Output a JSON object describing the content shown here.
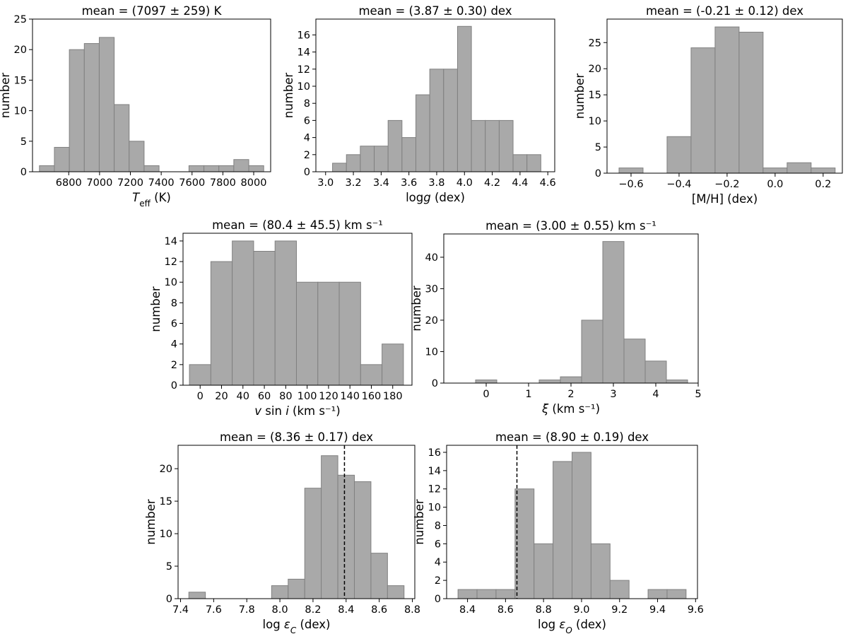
{
  "chart_data": [
    {
      "type": "histogram",
      "title": "mean = (7097 ± 259) K",
      "ylabel": "number",
      "xlabel": [
        {
          "text": "T",
          "italic": true
        },
        {
          "text": "eff",
          "sub": true
        },
        {
          "text": " (K)"
        }
      ],
      "bins": [
        6610,
        6707,
        6804,
        6901,
        6998,
        7095,
        7192,
        7289,
        7386,
        7483,
        7580,
        7677,
        7774,
        7871,
        7968,
        8065
      ],
      "values": [
        1,
        4,
        20,
        21,
        22,
        11,
        5,
        1,
        0,
        0,
        1,
        1,
        1,
        2,
        1
      ],
      "color": "#a9a9a9",
      "edgecolor": "#808080",
      "xlim": [
        6565,
        8110
      ],
      "xticks": [
        6800,
        7000,
        7200,
        7400,
        7600,
        7800,
        8000
      ],
      "ylim": [
        0,
        25
      ],
      "yticks": [
        0,
        5,
        10,
        15,
        20,
        25
      ]
    },
    {
      "type": "histogram",
      "title": "mean = (3.87 ± 0.30) dex",
      "ylabel": "number",
      "xlabel": [
        {
          "text": "log"
        },
        {
          "text": "g",
          "italic": true
        },
        {
          "text": " (dex)"
        }
      ],
      "bins": [
        3.05,
        3.15,
        3.25,
        3.35,
        3.45,
        3.55,
        3.65,
        3.75,
        3.85,
        3.95,
        4.05,
        4.15,
        4.25,
        4.35,
        4.45,
        4.55
      ],
      "values": [
        1,
        2,
        3,
        3,
        6,
        4,
        9,
        12,
        12,
        17,
        6,
        6,
        6,
        2,
        2
      ],
      "color": "#a9a9a9",
      "edgecolor": "#808080",
      "xlim": [
        2.93,
        4.65
      ],
      "xticks": [
        {
          "value": 3,
          "label": "3.0"
        },
        3.2,
        3.4,
        3.6,
        3.8,
        {
          "value": 4,
          "label": "4.0"
        },
        4.2,
        4.4,
        4.6
      ],
      "ylim": [
        0,
        17.85
      ],
      "yticks": [
        0,
        2,
        4,
        6,
        8,
        10,
        12,
        14,
        16
      ]
    },
    {
      "type": "histogram",
      "title": "mean = (-0.21 ± 0.12) dex",
      "ylabel": "number",
      "xlabel": [
        {
          "text": "[M/H] (dex)"
        }
      ],
      "bins": [
        -0.65,
        -0.55,
        -0.45,
        -0.35,
        -0.25,
        -0.15,
        -0.05,
        0.05,
        0.15,
        0.25
      ],
      "values": [
        1,
        0,
        7,
        24,
        28,
        27,
        1,
        2,
        1
      ],
      "color": "#a9a9a9",
      "edgecolor": "#808080",
      "xlim": [
        -0.7,
        0.28
      ],
      "xticks": [
        {
          "value": -0.6,
          "label": "−0.6"
        },
        {
          "value": -0.4,
          "label": "−0.4"
        },
        {
          "value": -0.2,
          "label": "−0.2"
        },
        {
          "value": 0,
          "label": "0.0"
        },
        0.2
      ],
      "ylim": [
        0,
        29.5
      ],
      "yticks": [
        0,
        5,
        10,
        15,
        20,
        25
      ]
    },
    {
      "type": "histogram",
      "title": "mean = (80.4 ± 45.5) km s⁻¹",
      "ylabel": "number",
      "xlabel": [
        {
          "text": "v",
          "italic": true
        },
        {
          "text": " sin "
        },
        {
          "text": "i",
          "italic": true
        },
        {
          "text": " (km s⁻¹)"
        }
      ],
      "bins": [
        -10,
        10,
        30,
        50,
        70,
        90,
        110,
        130,
        150,
        170,
        190
      ],
      "values": [
        2,
        12,
        14,
        13,
        14,
        10,
        10,
        10,
        2,
        4
      ],
      "color": "#a9a9a9",
      "edgecolor": "#808080",
      "xlim": [
        -16,
        198
      ],
      "xticks": [
        0,
        20,
        40,
        60,
        80,
        100,
        120,
        140,
        160,
        180
      ],
      "ylim": [
        0,
        14.75
      ],
      "yticks": [
        0,
        2,
        4,
        6,
        8,
        10,
        12,
        14
      ]
    },
    {
      "type": "histogram",
      "title": "mean = (3.00 ± 0.55) km s⁻¹",
      "ylabel": "number",
      "xlabel": [
        {
          "text": "ξ",
          "italic": true
        },
        {
          "text": " (km s⁻¹)"
        }
      ],
      "bins": [
        -0.25,
        0.25,
        0.75,
        1.25,
        1.75,
        2.25,
        2.75,
        3.25,
        3.75,
        4.25,
        4.75
      ],
      "values": [
        1,
        0,
        0,
        1,
        2,
        20,
        45,
        14,
        7,
        1
      ],
      "color": "#a9a9a9",
      "edgecolor": "#808080",
      "xlim": [
        -1,
        5
      ],
      "xticks": [
        0,
        1,
        2,
        3,
        4,
        5
      ],
      "ylim": [
        0,
        47.4
      ],
      "yticks": [
        0,
        10,
        20,
        30,
        40
      ]
    },
    {
      "type": "histogram",
      "title": "mean = (8.36 ± 0.17) dex",
      "ylabel": "number",
      "xlabel": [
        {
          "text": "log "
        },
        {
          "text": "ε",
          "italic": true
        },
        {
          "text": "C",
          "italic": true,
          "sub": true
        },
        {
          "text": " (dex)"
        }
      ],
      "bins": [
        7.45,
        7.55,
        7.65,
        7.75,
        7.85,
        7.95,
        8.05,
        8.15,
        8.25,
        8.35,
        8.45,
        8.55,
        8.65,
        8.75
      ],
      "values": [
        1,
        0,
        0,
        0,
        0,
        2,
        3,
        17,
        22,
        19,
        18,
        7,
        2
      ],
      "color": "#a9a9a9",
      "edgecolor": "#808080",
      "reference_line": 8.39,
      "xlim": [
        7.385,
        8.815
      ],
      "xticks": [
        7.4,
        7.6,
        7.8,
        {
          "value": 8,
          "label": "8.0"
        },
        8.2,
        8.4,
        8.6,
        8.8
      ],
      "ylim": [
        0,
        23.6
      ],
      "yticks": [
        0,
        5,
        10,
        15,
        20
      ]
    },
    {
      "type": "histogram",
      "title": "mean = (8.90 ± 0.19) dex",
      "ylabel": "number",
      "xlabel": [
        {
          "text": "log "
        },
        {
          "text": "ε",
          "italic": true
        },
        {
          "text": "O",
          "italic": true,
          "sub": true
        },
        {
          "text": " (dex)"
        }
      ],
      "bins": [
        8.35,
        8.45,
        8.55,
        8.65,
        8.75,
        8.85,
        8.95,
        9.05,
        9.15,
        9.25,
        9.35,
        9.45,
        9.55
      ],
      "values": [
        1,
        1,
        1,
        12,
        6,
        15,
        16,
        6,
        2,
        0,
        1,
        1
      ],
      "color": "#a9a9a9",
      "edgecolor": "#808080",
      "reference_line": 8.66,
      "xlim": [
        8.29,
        9.61
      ],
      "xticks": [
        8.4,
        8.6,
        8.8,
        {
          "value": 9,
          "label": "9.0"
        },
        9.2,
        9.4,
        9.6
      ],
      "ylim": [
        0,
        16.77
      ],
      "yticks": [
        0,
        2,
        4,
        6,
        8,
        10,
        12,
        14,
        16
      ]
    }
  ]
}
